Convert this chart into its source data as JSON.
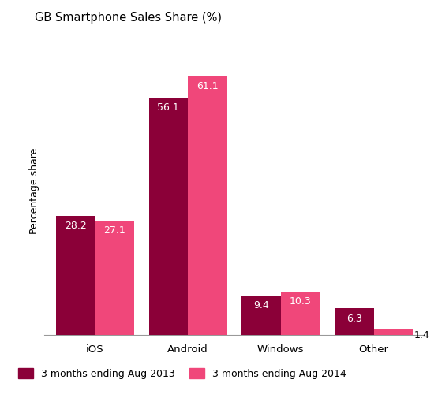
{
  "title": "GB Smartphone Sales Share (%)",
  "ylabel": "Percentage share",
  "categories": [
    "iOS",
    "Android",
    "Windows",
    "Other"
  ],
  "series": {
    "2013": [
      28.2,
      56.1,
      9.4,
      6.3
    ],
    "2014": [
      27.1,
      61.1,
      10.3,
      1.4
    ]
  },
  "colors": {
    "2013": "#8B0038",
    "2014": "#F0477A"
  },
  "legend_labels": {
    "2013": "3 months ending Aug 2013",
    "2014": "3 months ending Aug 2014"
  },
  "bar_width": 0.42,
  "ylim": [
    0,
    68
  ],
  "background_color": "#ffffff",
  "label_fontsize": 9,
  "title_fontsize": 10.5,
  "axis_label_fontsize": 9,
  "tick_fontsize": 9.5,
  "legend_fontsize": 9
}
